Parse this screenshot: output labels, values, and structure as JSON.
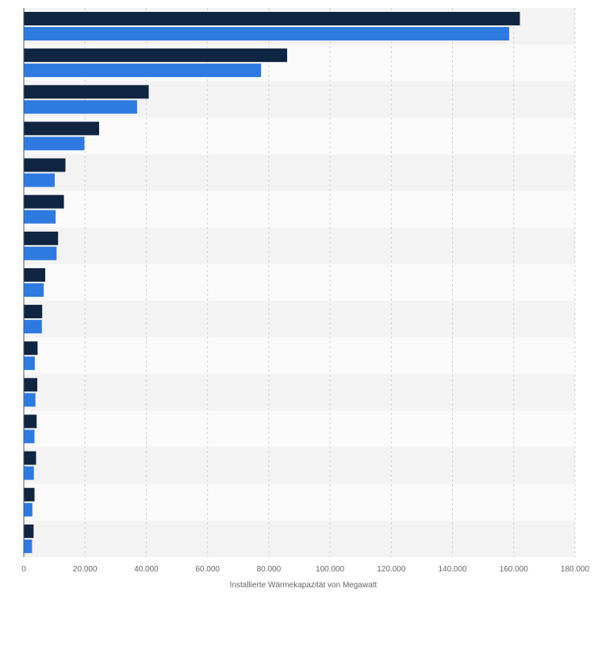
{
  "chart_data": {
    "type": "bar",
    "orientation": "horizontal",
    "categories": [
      "",
      "",
      "",
      "",
      "",
      "",
      "",
      "",
      "",
      "",
      "",
      "",
      "",
      "",
      ""
    ],
    "series": [
      {
        "color": "#0f2541",
        "values": [
          162000,
          86000,
          40800,
          24600,
          13600,
          13100,
          11200,
          7000,
          6000,
          4500,
          4400,
          4200,
          4000,
          3500,
          3200
        ]
      },
      {
        "color": "#2f7ae0",
        "values": [
          158500,
          77500,
          37000,
          19800,
          10100,
          10400,
          10700,
          6500,
          5900,
          3600,
          3800,
          3500,
          3300,
          2800,
          2700
        ]
      }
    ],
    "xlabel": "Installierte Wärmekapazität von Megawatt",
    "xlim": [
      0,
      180000
    ],
    "x_ticks": [
      0,
      20000,
      40000,
      60000,
      80000,
      100000,
      120000,
      140000,
      160000,
      180000
    ],
    "x_tick_labels": [
      "0",
      "20.000",
      "40.000",
      "60.000",
      "80.000",
      "100.000",
      "120.000",
      "140.000",
      "160.000",
      "180.000"
    ],
    "grid": true,
    "legend": "none"
  }
}
